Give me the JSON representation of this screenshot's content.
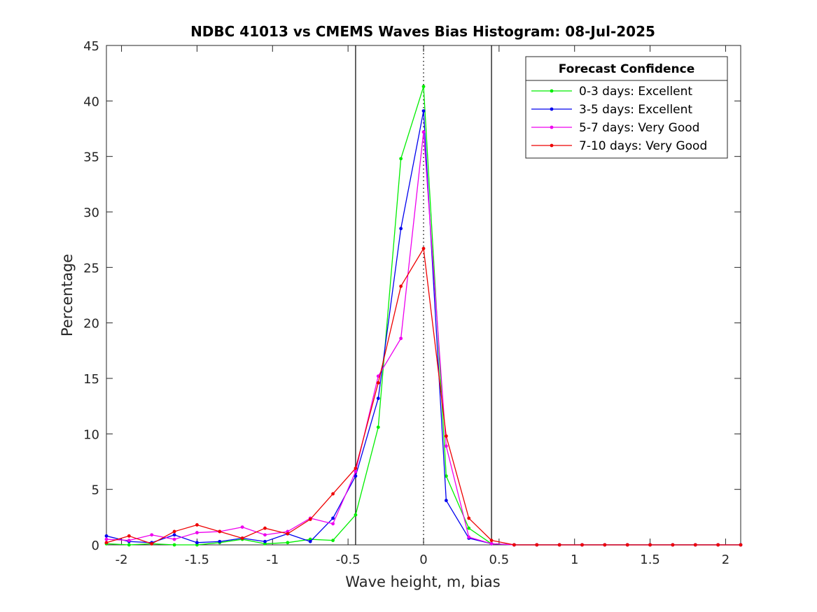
{
  "chart_data": {
    "type": "line",
    "title": "NDBC 41013 vs CMEMS Waves Bias Histogram: 08-Jul-2025",
    "xlabel": "Wave height, m, bias",
    "ylabel": "Percentage",
    "xlim": [
      -2.1,
      2.1
    ],
    "ylim": [
      0,
      45
    ],
    "xticks": [
      -2,
      -1.5,
      -1,
      -0.5,
      0,
      0.5,
      1,
      1.5,
      2
    ],
    "xtick_labels": [
      "-2",
      "-1.5",
      "-1",
      "-0.5",
      "0",
      "0.5",
      "1",
      "1.5",
      "2"
    ],
    "yticks": [
      0,
      5,
      10,
      15,
      20,
      25,
      30,
      35,
      40,
      45
    ],
    "ytick_labels": [
      "0",
      "5",
      "10",
      "15",
      "20",
      "25",
      "30",
      "35",
      "40",
      "45"
    ],
    "grid": false,
    "vertical_lines": [
      {
        "x": -0.45,
        "style": "solid",
        "color": "#000000"
      },
      {
        "x": 0.45,
        "style": "solid",
        "color": "#000000"
      },
      {
        "x": 0,
        "style": "dotted",
        "color": "#000000"
      }
    ],
    "legend": {
      "title": "Forecast Confidence",
      "position": "top-right"
    },
    "x": [
      -2.1,
      -1.95,
      -1.8,
      -1.65,
      -1.5,
      -1.35,
      -1.2,
      -1.05,
      -0.9,
      -0.75,
      -0.6,
      -0.45,
      -0.3,
      -0.15,
      0,
      0.15,
      0.3,
      0.45,
      0.6,
      0.75,
      0.9,
      1.05,
      1.2,
      1.35,
      1.5,
      1.65,
      1.8,
      1.95,
      2.1
    ],
    "series": [
      {
        "name": "0-3 days: Excellent",
        "color": "#00ee00",
        "values": [
          0.1,
          0.0,
          0.1,
          0.0,
          0.0,
          0.2,
          0.5,
          0.1,
          0.2,
          0.5,
          0.4,
          2.7,
          10.6,
          34.8,
          41.3,
          6.2,
          1.5,
          0.1,
          0.0,
          0.0,
          0.0,
          0.0,
          0.0,
          0.0,
          0.0,
          0.0,
          0.0,
          0.0,
          0.0
        ]
      },
      {
        "name": "3-5 days: Excellent",
        "color": "#0000ee",
        "values": [
          0.8,
          0.3,
          0.2,
          0.9,
          0.2,
          0.3,
          0.6,
          0.3,
          1.0,
          0.3,
          2.4,
          6.2,
          13.2,
          28.5,
          39.1,
          4.0,
          0.6,
          0.1,
          0.0,
          0.0,
          0.0,
          0.0,
          0.0,
          0.0,
          0.0,
          0.0,
          0.0,
          0.0,
          0.0
        ]
      },
      {
        "name": "5-7 days: Very Good",
        "color": "#ee00ee",
        "values": [
          0.5,
          0.4,
          0.9,
          0.5,
          1.1,
          1.2,
          1.6,
          0.9,
          1.2,
          2.4,
          1.9,
          6.6,
          15.2,
          18.6,
          37.2,
          8.9,
          0.7,
          0.1,
          0.0,
          0.0,
          0.0,
          0.0,
          0.0,
          0.0,
          0.0,
          0.0,
          0.0,
          0.0,
          0.0
        ]
      },
      {
        "name": "7-10 days: Very Good",
        "color": "#ee0000",
        "values": [
          0.2,
          0.8,
          0.1,
          1.2,
          1.8,
          1.2,
          0.6,
          1.5,
          1.0,
          2.3,
          4.6,
          6.9,
          14.6,
          23.3,
          26.7,
          9.8,
          2.4,
          0.4,
          0.0,
          0.0,
          0.0,
          0.0,
          0.0,
          0.0,
          0.0,
          0.0,
          0.0,
          0.0,
          0.0
        ]
      }
    ]
  }
}
